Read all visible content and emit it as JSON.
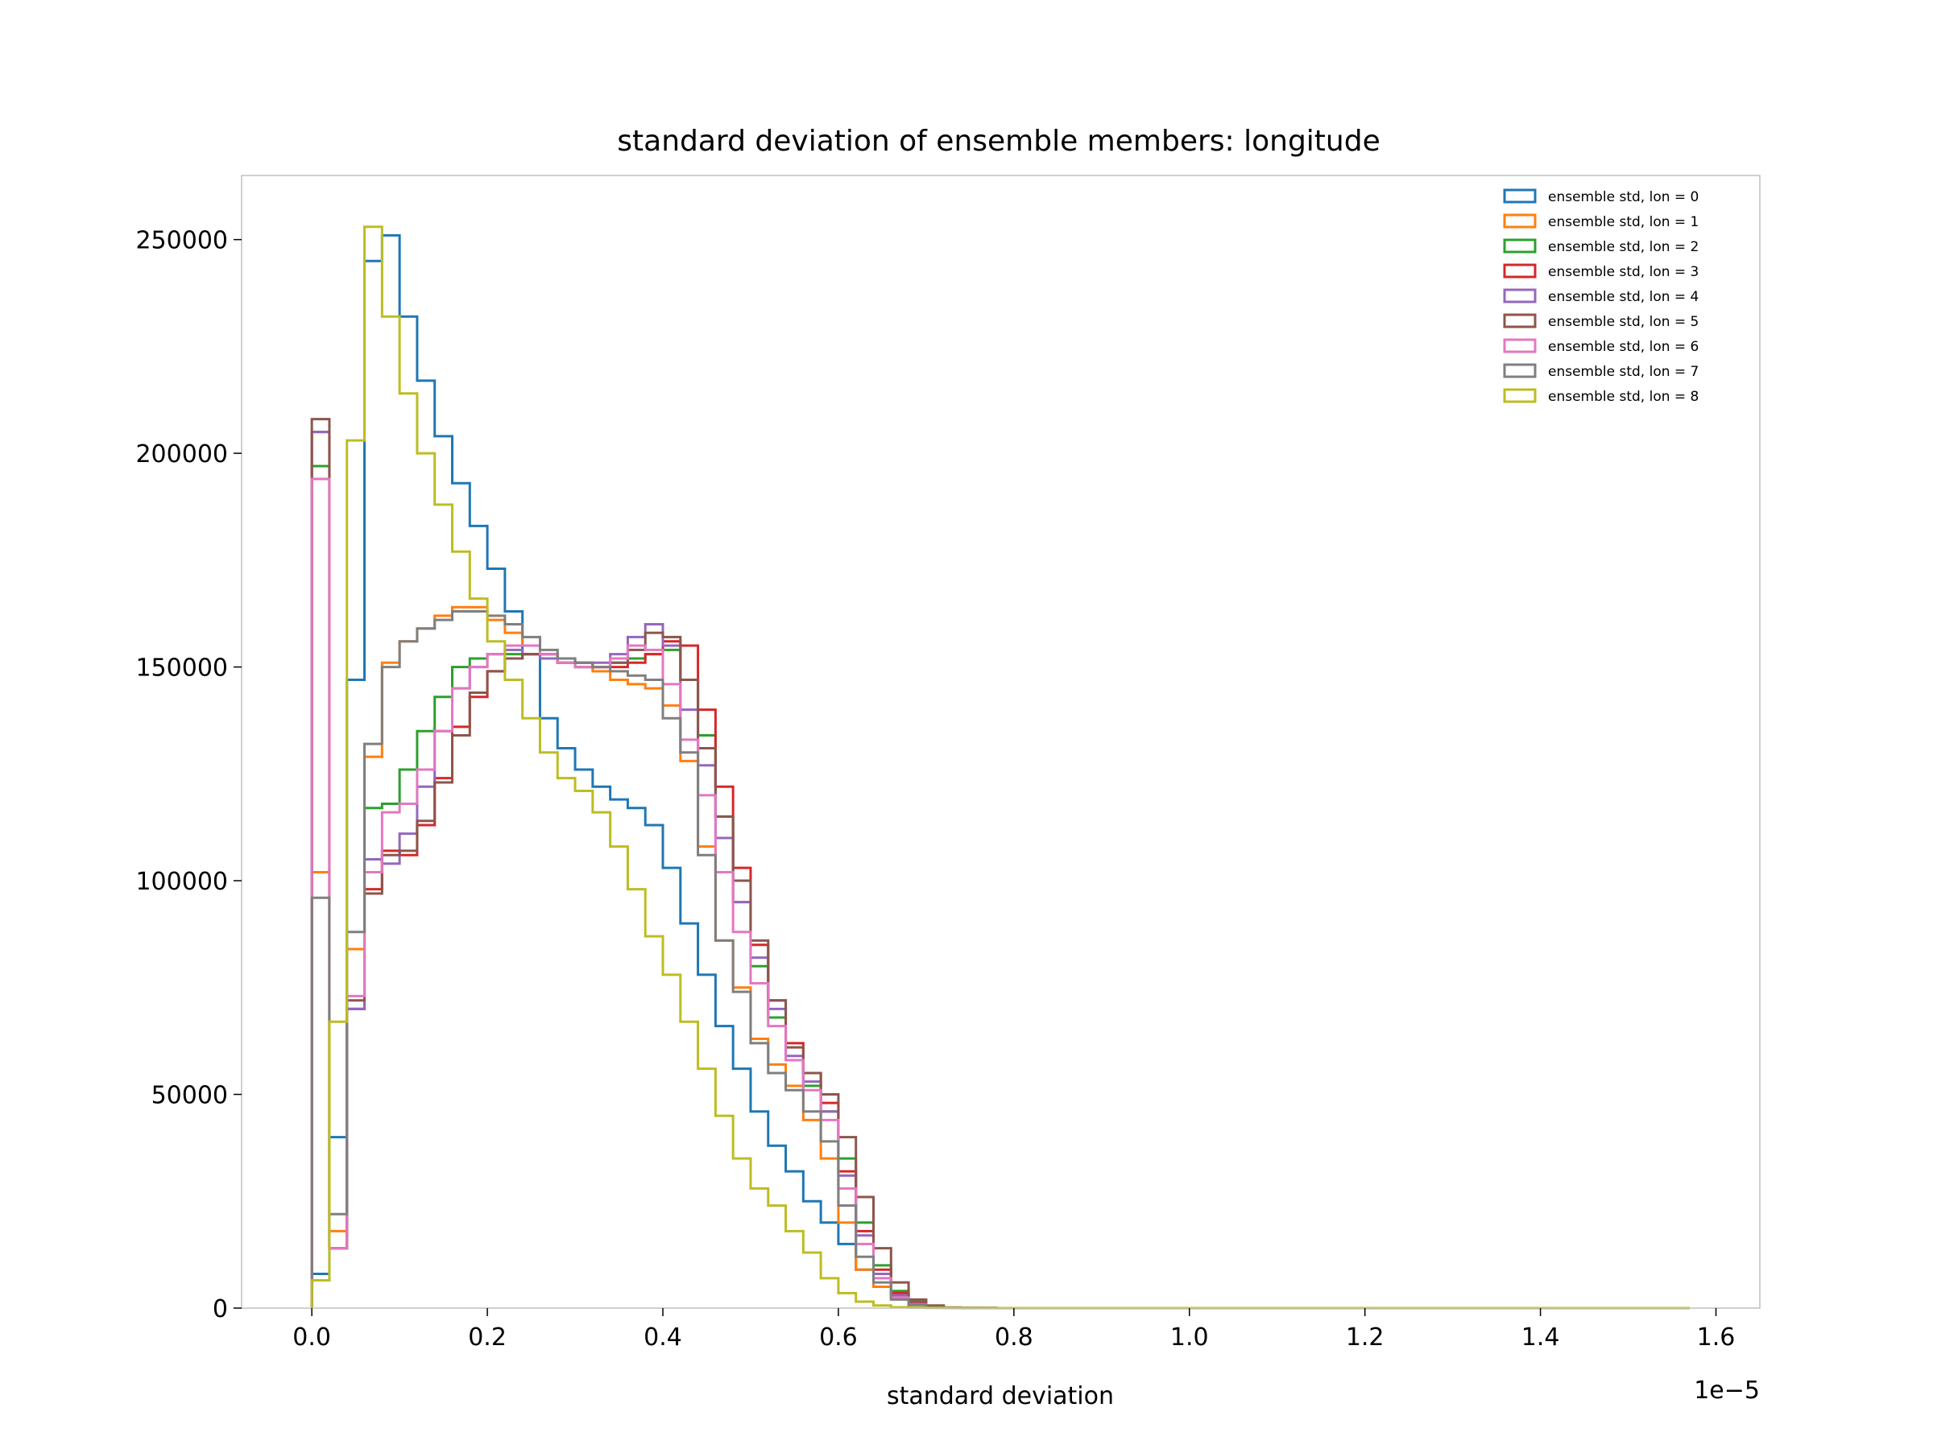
{
  "chart_data": {
    "type": "histogram",
    "title": "standard deviation of ensemble members: longitude",
    "xlabel": "standard deviation",
    "ylabel": "",
    "x_offset_label": "1e−5",
    "x_scale": 1e-05,
    "xlim": [
      -0.08,
      1.65
    ],
    "ylim": [
      0,
      265000
    ],
    "x_ticks": [
      0.0,
      0.2,
      0.4,
      0.6,
      0.8,
      1.0,
      1.2,
      1.4,
      1.6
    ],
    "x_tick_labels": [
      "0.0",
      "0.2",
      "0.4",
      "0.6",
      "0.8",
      "1.0",
      "1.2",
      "1.4",
      "1.6"
    ],
    "y_ticks": [
      0,
      50000,
      100000,
      150000,
      200000,
      250000
    ],
    "y_tick_labels": [
      "0",
      "50000",
      "100000",
      "150000",
      "200000",
      "250000"
    ],
    "grid": false,
    "legend_position": "top-right",
    "bin_edges": [
      0,
      0.02,
      0.04,
      0.06,
      0.08,
      0.1,
      0.12,
      0.14,
      0.16,
      0.18,
      0.2,
      0.22,
      0.24,
      0.26,
      0.28,
      0.3,
      0.32,
      0.34,
      0.36,
      0.38,
      0.4,
      0.42,
      0.44,
      0.46,
      0.48,
      0.5,
      0.52,
      0.54,
      0.56,
      0.58,
      0.6,
      0.62,
      0.64,
      0.66,
      0.68,
      0.7,
      0.72,
      0.74,
      0.76,
      0.78,
      0.8,
      0.82,
      0.84,
      0.86,
      0.88,
      0.9,
      0.92,
      0.94,
      0.96,
      0.98,
      1.0,
      1.57
    ],
    "series": [
      {
        "name": "ensemble std, lon = 0",
        "color": "#1f77b4",
        "values": [
          8000,
          40000,
          147000,
          245000,
          251000,
          232000,
          217000,
          204000,
          193000,
          183000,
          173000,
          163000,
          153000,
          138000,
          131000,
          126000,
          122000,
          119000,
          117000,
          113000,
          103000,
          90000,
          78000,
          66000,
          56000,
          46000,
          38000,
          32000,
          25000,
          20000,
          15000,
          9000,
          5000,
          2500,
          1000,
          300,
          100,
          50,
          20,
          10,
          5,
          2,
          1,
          0,
          0,
          0,
          0,
          0,
          0,
          0,
          0
        ]
      },
      {
        "name": "ensemble std, lon = 1",
        "color": "#ff7f0e",
        "values": [
          102000,
          18000,
          84000,
          129000,
          151000,
          156000,
          159000,
          162000,
          164000,
          164000,
          161000,
          158000,
          155000,
          153000,
          151000,
          150000,
          149000,
          147000,
          146000,
          145000,
          141000,
          128000,
          108000,
          86000,
          75000,
          63000,
          57000,
          52000,
          44000,
          35000,
          20000,
          9000,
          5000,
          2500,
          1000,
          300,
          100,
          50,
          20,
          10,
          5,
          2,
          1,
          0,
          0,
          0,
          0,
          0,
          0,
          0,
          0
        ]
      },
      {
        "name": "ensemble std, lon = 2",
        "color": "#2ca02c",
        "values": [
          197000,
          14000,
          70000,
          117000,
          118000,
          126000,
          135000,
          143000,
          150000,
          152000,
          153000,
          153000,
          153000,
          152000,
          151000,
          150000,
          150000,
          151000,
          152000,
          153000,
          154000,
          147000,
          134000,
          115000,
          95000,
          80000,
          68000,
          58000,
          52000,
          46000,
          35000,
          20000,
          10000,
          4000,
          1500,
          500,
          100,
          50,
          20,
          10,
          5,
          2,
          1,
          0,
          0,
          0,
          0,
          0,
          0,
          0,
          0
        ]
      },
      {
        "name": "ensemble std, lon = 3",
        "color": "#d62728",
        "values": [
          205000,
          14000,
          70000,
          98000,
          107000,
          106000,
          113000,
          124000,
          136000,
          143000,
          149000,
          152000,
          153000,
          153000,
          152000,
          151000,
          150000,
          150000,
          151000,
          153000,
          156000,
          155000,
          140000,
          122000,
          103000,
          85000,
          72000,
          62000,
          55000,
          48000,
          32000,
          18000,
          9000,
          3500,
          1200,
          400,
          100,
          50,
          20,
          10,
          5,
          2,
          1,
          0,
          0,
          0,
          0,
          0,
          0,
          0,
          0
        ]
      },
      {
        "name": "ensemble std, lon = 4",
        "color": "#9467bd",
        "values": [
          205000,
          14000,
          70000,
          105000,
          104000,
          111000,
          122000,
          135000,
          145000,
          150000,
          153000,
          154000,
          153000,
          152000,
          151000,
          150000,
          151000,
          153000,
          157000,
          160000,
          155000,
          140000,
          127000,
          110000,
          95000,
          82000,
          70000,
          59000,
          53000,
          46000,
          31000,
          17000,
          8000,
          3000,
          1000,
          300,
          100,
          50,
          20,
          10,
          5,
          2,
          1,
          0,
          0,
          0,
          0,
          0,
          0,
          0,
          0
        ]
      },
      {
        "name": "ensemble std, lon = 5",
        "color": "#8c564b",
        "values": [
          208000,
          14000,
          72000,
          97000,
          106000,
          107000,
          114000,
          123000,
          134000,
          144000,
          149000,
          152000,
          153000,
          153000,
          152000,
          151000,
          150000,
          151000,
          154000,
          158000,
          157000,
          147000,
          131000,
          115000,
          100000,
          86000,
          72000,
          61000,
          55000,
          50000,
          40000,
          26000,
          14000,
          6000,
          2000,
          600,
          150,
          50,
          20,
          10,
          5,
          2,
          1,
          0,
          0,
          0,
          0,
          0,
          0,
          0,
          0
        ]
      },
      {
        "name": "ensemble std, lon = 6",
        "color": "#e377c2",
        "values": [
          194000,
          14000,
          73000,
          102000,
          116000,
          118000,
          126000,
          135000,
          145000,
          150000,
          153000,
          155000,
          155000,
          153000,
          151000,
          150000,
          150000,
          152000,
          155000,
          154000,
          146000,
          133000,
          120000,
          102000,
          88000,
          76000,
          66000,
          58000,
          51000,
          44000,
          28000,
          15000,
          7000,
          2500,
          800,
          200,
          100,
          50,
          20,
          10,
          5,
          2,
          1,
          0,
          0,
          0,
          0,
          0,
          0,
          0,
          0
        ]
      },
      {
        "name": "ensemble std, lon = 7",
        "color": "#7f7f7f",
        "values": [
          96000,
          22000,
          88000,
          132000,
          150000,
          156000,
          159000,
          161000,
          163000,
          163000,
          162000,
          160000,
          157000,
          154000,
          152000,
          151000,
          150000,
          149000,
          148000,
          147000,
          138000,
          130000,
          106000,
          86000,
          74000,
          62000,
          55000,
          51000,
          46000,
          39000,
          24000,
          12000,
          6000,
          2000,
          700,
          200,
          100,
          50,
          20,
          10,
          5,
          2,
          1,
          0,
          0,
          0,
          0,
          0,
          0,
          0,
          0
        ]
      },
      {
        "name": "ensemble std, lon = 8",
        "color": "#bcbd22",
        "values": [
          6500,
          67000,
          203000,
          253000,
          232000,
          214000,
          200000,
          188000,
          177000,
          166000,
          156000,
          147000,
          138000,
          130000,
          124000,
          121000,
          116000,
          108000,
          98000,
          87000,
          78000,
          67000,
          56000,
          45000,
          35000,
          28000,
          24000,
          18000,
          13000,
          7000,
          3500,
          1500,
          600,
          200,
          100,
          50,
          20,
          10,
          5,
          2,
          1,
          0,
          0,
          0,
          0,
          0,
          0,
          0,
          0,
          0,
          0
        ]
      }
    ]
  }
}
